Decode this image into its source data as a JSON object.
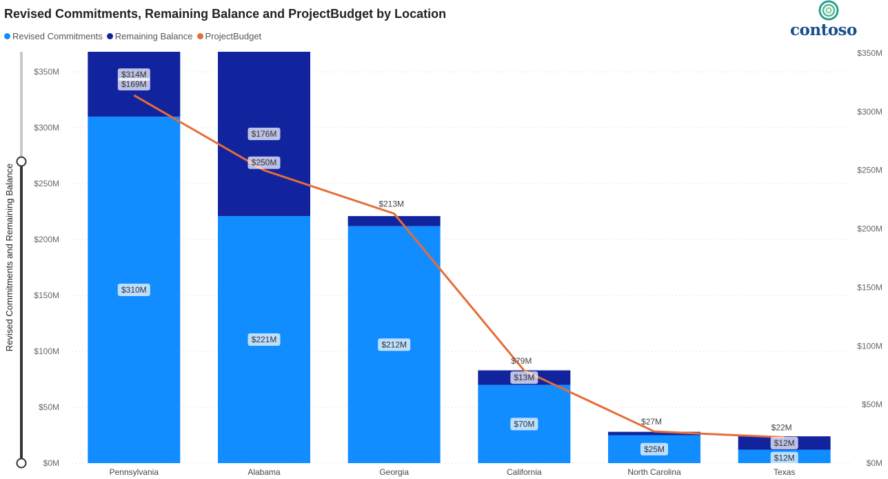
{
  "title": "Revised Commitments, Remaining Balance and ProjectBudget by Location",
  "logo_text": "contoso",
  "legend": [
    {
      "label": "Revised Commitments",
      "color": "#118DFF"
    },
    {
      "label": "Remaining Balance",
      "color": "#12239E"
    },
    {
      "label": "ProjectBudget",
      "color": "#E66C37"
    }
  ],
  "chart_data": {
    "type": "bar",
    "stacked": true,
    "title": "Revised Commitments, Remaining Balance and ProjectBudget by Location",
    "xlabel": "",
    "ylabel": "Revised Commitments and Remaining Balance",
    "ylim": [
      0,
      368
    ],
    "y2lim": [
      0,
      350
    ],
    "y_ticks": [
      "$0M",
      "$50M",
      "$100M",
      "$150M",
      "$200M",
      "$250M",
      "$300M",
      "$350M"
    ],
    "y_tick_values": [
      0,
      50,
      100,
      150,
      200,
      250,
      300,
      350
    ],
    "y2_ticks": [
      "$0M",
      "$50M",
      "$100M",
      "$150M",
      "$200M",
      "$250M",
      "$300M",
      "$350M"
    ],
    "y2_tick_values": [
      0,
      50,
      100,
      150,
      200,
      250,
      300,
      350
    ],
    "grid": true,
    "legend_position": "top-left",
    "categories": [
      "Pennsylvania",
      "Alabama",
      "Georgia",
      "California",
      "North Carolina",
      "Texas"
    ],
    "series": [
      {
        "name": "Revised Commitments",
        "type": "bar",
        "color": "#118DFF",
        "values": [
          310,
          221,
          212,
          70,
          25,
          12
        ],
        "labels": [
          "$310M",
          "$221M",
          "$212M",
          "$70M",
          "$25M",
          "$12M"
        ]
      },
      {
        "name": "Remaining Balance",
        "type": "bar",
        "color": "#12239E",
        "values": [
          169,
          176,
          9,
          13,
          3,
          12
        ],
        "labels": [
          "$169M",
          "$176M",
          "",
          "$13M",
          "",
          "$12M"
        ]
      },
      {
        "name": "ProjectBudget",
        "type": "line",
        "axis": "secondary",
        "color": "#E66C37",
        "values": [
          314,
          250,
          213,
          79,
          27,
          22
        ],
        "labels": [
          "$314M",
          "$250M",
          "$213M",
          "$79M",
          "$27M",
          "$22M"
        ]
      }
    ]
  }
}
